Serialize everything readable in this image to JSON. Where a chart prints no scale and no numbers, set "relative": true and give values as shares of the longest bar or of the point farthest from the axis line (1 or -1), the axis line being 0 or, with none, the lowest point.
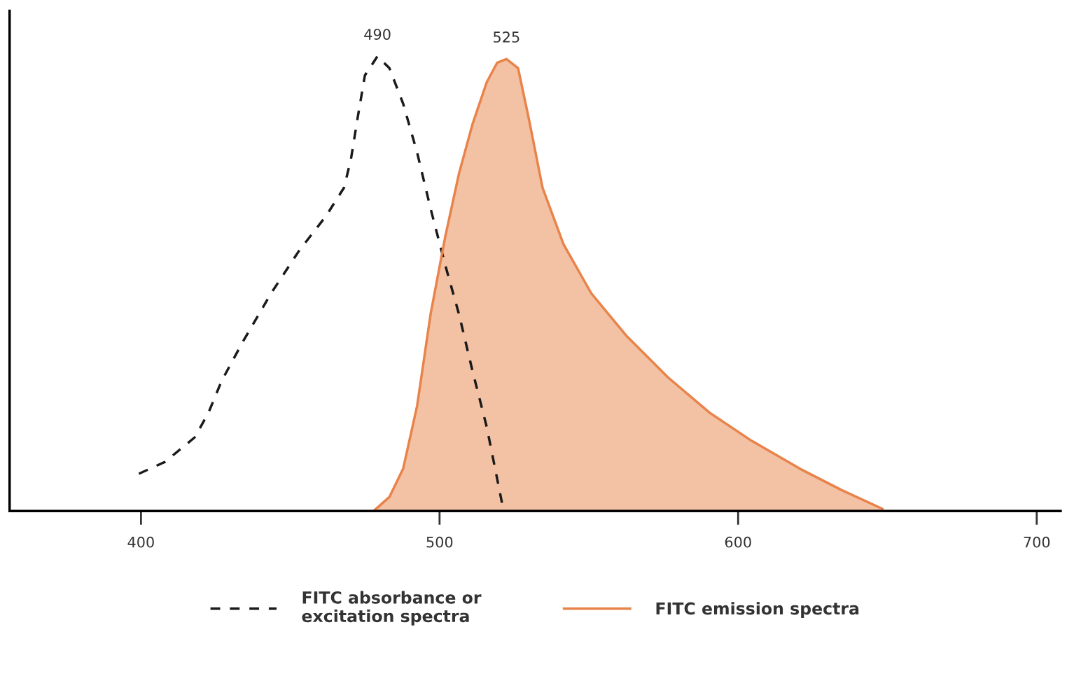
{
  "chart_data": {
    "type": "line",
    "relative": true,
    "xlim": [
      356,
      708
    ],
    "xticks": [
      400,
      500,
      600,
      700
    ],
    "tick_labels": "x",
    "series": [
      {
        "name": "FITC absorbance or\nexcitation spectra",
        "line_style": "dashed",
        "color": "#1a1a1a",
        "x": [
          399.3,
          408,
          418,
          422.6,
          427,
          434,
          443.6,
          452.9,
          462,
          468,
          470.3,
          472.6,
          475,
          479.2,
          483.2,
          487.8,
          492.5,
          497,
          501.9,
          506.5,
          511,
          515.8,
          521
        ],
        "values": [
          0.082,
          0.108,
          0.162,
          0.216,
          0.286,
          0.371,
          0.479,
          0.572,
          0.649,
          0.711,
          0.773,
          0.866,
          0.958,
          1.0,
          0.974,
          0.896,
          0.788,
          0.665,
          0.541,
          0.433,
          0.309,
          0.185,
          0.015
        ]
      },
      {
        "name": "FITC emission spectra",
        "type": "area",
        "line_style": "solid",
        "color": "#e8834a",
        "x": [
          477.9,
          483.2,
          487.8,
          492.5,
          497,
          501.9,
          506.5,
          511,
          515.8,
          519.3,
          522.4,
          526.3,
          529.8,
          534.5,
          541.5,
          550.8,
          562.5,
          576.5,
          590.5,
          604.4,
          620.7,
          634.7,
          648.3
        ],
        "values": [
          0,
          0.031,
          0.093,
          0.232,
          0.433,
          0.603,
          0.742,
          0.85,
          0.943,
          0.986,
          0.994,
          0.974,
          0.866,
          0.711,
          0.587,
          0.479,
          0.386,
          0.294,
          0.216,
          0.155,
          0.093,
          0.046,
          0.005
        ]
      }
    ],
    "annotations": [
      {
        "text": "490",
        "x": 479.2,
        "y": 1.0
      },
      {
        "text": "525",
        "x": 522.4,
        "y": 0.994
      }
    ],
    "legend": "bottom",
    "grid": false,
    "marker": "none"
  }
}
